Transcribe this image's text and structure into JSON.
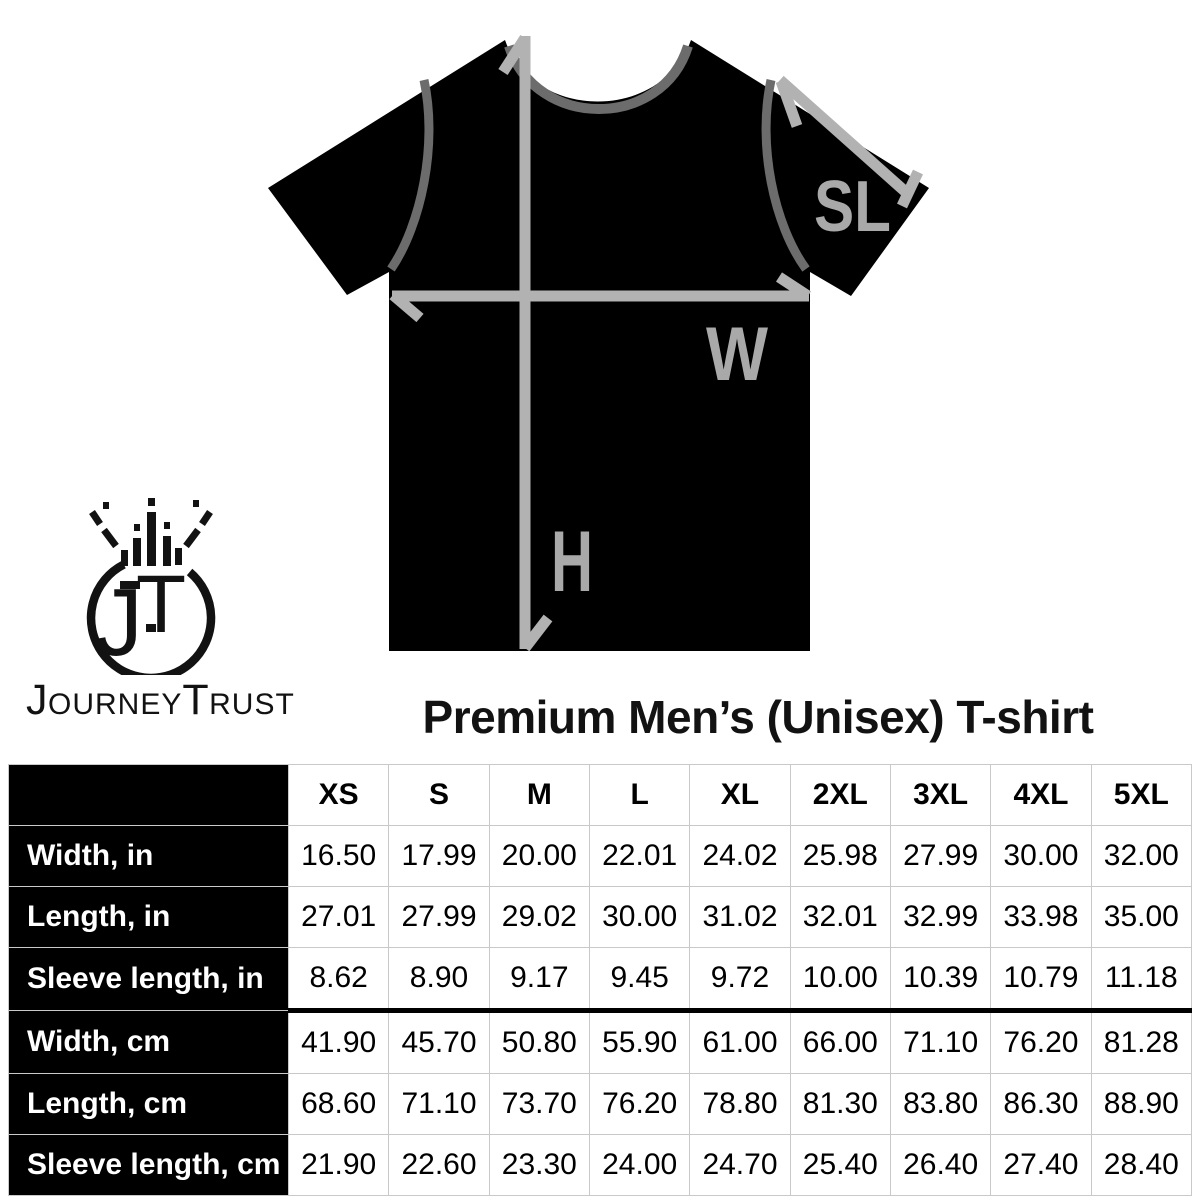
{
  "title": "Premium Men’s (Unisex) T-shirt",
  "brand": {
    "monogram_j": "J",
    "monogram_t": "T",
    "word1_initial": "J",
    "word1_rest": "OURNEY",
    "word2_initial": "T",
    "word2_rest": "RUST"
  },
  "diagram": {
    "width_label": "W",
    "height_label": "H",
    "sleeve_label": "SL"
  },
  "table": {
    "sizes": [
      "XS",
      "S",
      "M",
      "L",
      "XL",
      "2XL",
      "3XL",
      "4XL",
      "5XL"
    ],
    "rows": [
      {
        "label": "Width, in",
        "values": [
          "16.50",
          "17.99",
          "20.00",
          "22.01",
          "24.02",
          "25.98",
          "27.99",
          "30.00",
          "32.00"
        ]
      },
      {
        "label": "Length, in",
        "values": [
          "27.01",
          "27.99",
          "29.02",
          "30.00",
          "31.02",
          "32.01",
          "32.99",
          "33.98",
          "35.00"
        ]
      },
      {
        "label": "Sleeve length, in",
        "values": [
          "8.62",
          "8.90",
          "9.17",
          "9.45",
          "9.72",
          "10.00",
          "10.39",
          "10.79",
          "11.18"
        ]
      },
      {
        "label": "Width, cm",
        "values": [
          "41.90",
          "45.70",
          "50.80",
          "55.90",
          "61.00",
          "66.00",
          "71.10",
          "76.20",
          "81.28"
        ]
      },
      {
        "label": "Length, cm",
        "values": [
          "68.60",
          "71.10",
          "73.70",
          "76.20",
          "78.80",
          "81.30",
          "83.80",
          "86.30",
          "88.90"
        ]
      },
      {
        "label": "Sleeve length, cm",
        "values": [
          "21.90",
          "22.60",
          "23.30",
          "24.00",
          "24.70",
          "25.40",
          "26.40",
          "27.40",
          "28.40"
        ]
      }
    ]
  },
  "colors": {
    "shirt": "#000000",
    "seam": "#6c6c6c",
    "arrow": "#b2b2b2",
    "measure_label": "#a9a9a9",
    "grid": "#c9c9c9",
    "label_cell_bg": "#000000",
    "label_cell_text": "#ffffff",
    "text": "#121212"
  }
}
